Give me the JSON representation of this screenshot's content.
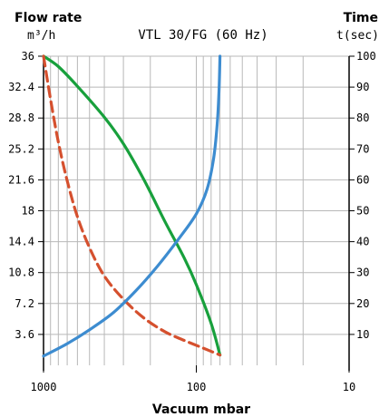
{
  "chart_data": {
    "type": "line",
    "title": "VTL 30/FG (60 Hz)",
    "left_axis": {
      "label_line1": "Flow rate",
      "label_line2": "m³/h",
      "ticks": [
        "36",
        "32.4",
        "28.8",
        "25.2",
        "21.6",
        "18",
        "14.4",
        "10.8",
        "7.2",
        "3.6"
      ],
      "ticks_values": [
        36,
        32.4,
        28.8,
        25.2,
        21.6,
        18,
        14.4,
        10.8,
        7.2,
        3.6
      ],
      "range": [
        0,
        36
      ]
    },
    "right_axis": {
      "label_line1": "Time",
      "label_line2": "t(sec)",
      "ticks": [
        "100",
        "90",
        "80",
        "70",
        "60",
        "50",
        "40",
        "30",
        "20",
        "10"
      ],
      "ticks_values": [
        100,
        90,
        80,
        70,
        60,
        50,
        40,
        30,
        20,
        10
      ],
      "range": [
        0,
        100
      ]
    },
    "x_axis": {
      "label": "Vacuum mbar",
      "scale": "log",
      "reversed": true,
      "ticks": [
        "1000",
        "100",
        "10"
      ],
      "range": [
        1000,
        10
      ]
    },
    "grid": true,
    "series": [
      {
        "color": "#18a03c",
        "style": "solid",
        "axis": "left",
        "points": [
          [
            1000,
            36
          ],
          [
            800,
            34.8
          ],
          [
            600,
            32.5
          ],
          [
            400,
            28.9
          ],
          [
            300,
            25.8
          ],
          [
            220,
            21.6
          ],
          [
            160,
            16.7
          ],
          [
            120,
            12.5
          ],
          [
            100,
            9.4
          ],
          [
            80,
            4.9
          ],
          [
            70,
            1.2
          ]
        ]
      },
      {
        "color": "#d5502e",
        "style": "dashed",
        "axis": "left",
        "points": [
          [
            1000,
            36
          ],
          [
            900,
            31
          ],
          [
            800,
            26
          ],
          [
            700,
            21.5
          ],
          [
            600,
            17.3
          ],
          [
            500,
            13.7
          ],
          [
            400,
            10.4
          ],
          [
            300,
            7.7
          ],
          [
            220,
            5.5
          ],
          [
            160,
            3.9
          ],
          [
            120,
            2.9
          ],
          [
            90,
            2
          ],
          [
            70,
            1.2
          ]
        ]
      },
      {
        "color": "#3d8cd0",
        "style": "solid",
        "axis": "right",
        "points": [
          [
            1000,
            3
          ],
          [
            700,
            7
          ],
          [
            500,
            11.5
          ],
          [
            350,
            17
          ],
          [
            250,
            24
          ],
          [
            180,
            32
          ],
          [
            130,
            41
          ],
          [
            100,
            49
          ],
          [
            85,
            57
          ],
          [
            77,
            67
          ],
          [
            73,
            78
          ],
          [
            71,
            89
          ],
          [
            70,
            100
          ]
        ]
      }
    ]
  }
}
